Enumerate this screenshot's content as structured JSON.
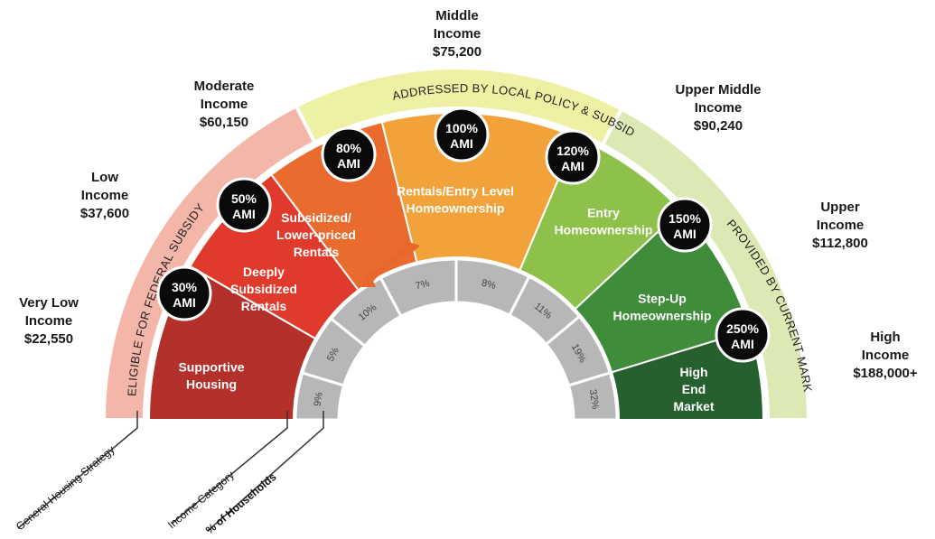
{
  "strategy_bands": [
    {
      "text": "ELIGIBLE FOR FEDERAL SUBSIDY",
      "color": "#f3b6a9"
    },
    {
      "text": "ADDRESSED BY LOCAL POLICY & SUBSIDY",
      "color": "#eef0a4"
    },
    {
      "text": "PROVIDED BY CURRENT MARKET",
      "color": "#dde9b4"
    }
  ],
  "categories": [
    {
      "lines": [
        "Supportive",
        "Housing"
      ],
      "color": "#b3302b"
    },
    {
      "lines": [
        "Deeply",
        "Subsidized",
        "Rentals"
      ],
      "color": "#df3a2c"
    },
    {
      "lines": [
        "Subsidized/",
        "Lower-priced",
        "Rentals"
      ],
      "color": "#ea6b2e"
    },
    {
      "lines": [
        "Rentals/Entry Level",
        "Homeownership"
      ],
      "color": "#f2a23a"
    },
    {
      "lines": [
        "Entry",
        "Homeownership"
      ],
      "color": "#8dc14a"
    },
    {
      "lines": [
        "Step-Up",
        "Homeownership"
      ],
      "color": "#3f8d3a"
    },
    {
      "lines": [
        "High",
        "End",
        "Market"
      ],
      "color": "#27602f"
    }
  ],
  "households": [
    "9%",
    "5%",
    "10%",
    "7%",
    "8%",
    "11%",
    "19%",
    "32%"
  ],
  "ami_markers": [
    {
      "pct": "30%",
      "unit": "AMI"
    },
    {
      "pct": "50%",
      "unit": "AMI"
    },
    {
      "pct": "80%",
      "unit": "AMI"
    },
    {
      "pct": "100%",
      "unit": "AMI"
    },
    {
      "pct": "120%",
      "unit": "AMI"
    },
    {
      "pct": "150%",
      "unit": "AMI"
    },
    {
      "pct": "250%",
      "unit": "AMI"
    }
  ],
  "income_labels": [
    {
      "lines": [
        "Very Low",
        "Income",
        "$22,550"
      ]
    },
    {
      "lines": [
        "Low",
        "Income",
        "$37,600"
      ]
    },
    {
      "lines": [
        "Moderate",
        "Income",
        "$60,150"
      ]
    },
    {
      "lines": [
        "Middle",
        "Income",
        "$75,200"
      ]
    },
    {
      "lines": [
        "Upper Middle",
        "Income",
        "$90,240"
      ]
    },
    {
      "lines": [
        "Upper",
        "Income",
        "$112,800"
      ]
    },
    {
      "lines": [
        "High",
        "Income",
        "$188,000+"
      ]
    }
  ],
  "legend": {
    "strategy": "General Housing Strategy",
    "category": "Income Category",
    "households": "% of Households"
  }
}
